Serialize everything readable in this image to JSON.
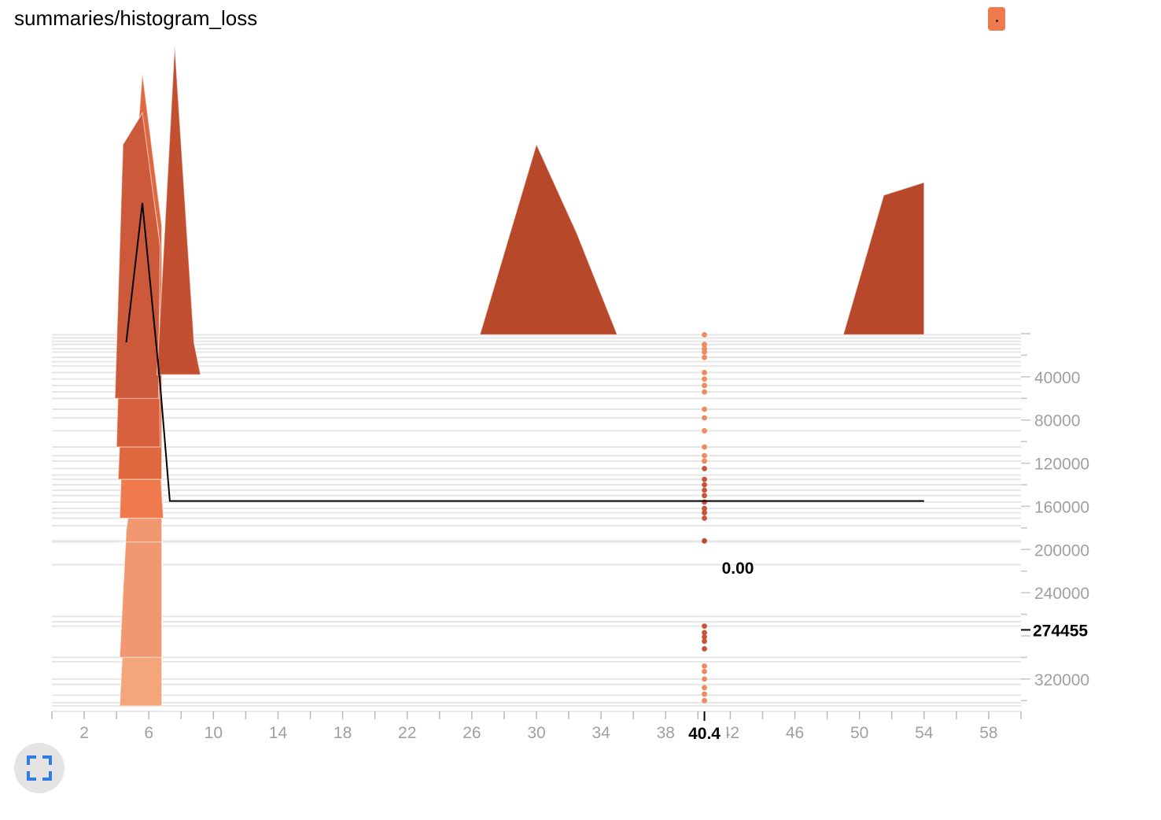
{
  "card": {
    "title": "summaries/histogram_loss",
    "series_color": "#ef7a4e"
  },
  "hover": {
    "x_value_label": "40.4",
    "bin_value_label": "0.00",
    "step_label": "274455"
  },
  "chart_data": {
    "type": "histogram-offset",
    "title": "summaries/histogram_loss",
    "x": {
      "range": [
        0,
        60
      ],
      "ticks": [
        2,
        6,
        10,
        14,
        18,
        22,
        26,
        30,
        34,
        38,
        42,
        46,
        50,
        54,
        58
      ]
    },
    "y_steps": {
      "range": [
        0,
        350000
      ],
      "ticks": [
        40000,
        80000,
        120000,
        160000,
        200000,
        240000,
        320000
      ]
    },
    "hover_x": 40.4,
    "hover_step": 274455,
    "hover_value": 0.0,
    "hover_bin_line": [
      [
        4.6,
        187500
      ],
      [
        5.6,
        125000
      ],
      [
        7.3,
        0
      ],
      [
        54,
        0
      ]
    ],
    "baseline_steps": [
      1000,
      4000,
      7000,
      10000,
      14000,
      17000,
      22000,
      26000,
      30000,
      36000,
      42000,
      48000,
      54000,
      60000,
      70000,
      78000,
      90000,
      105000,
      113000,
      118000,
      125000,
      131000,
      135000,
      140000,
      145000,
      150000,
      156000,
      162000,
      166000,
      171000,
      178000,
      192000,
      193000,
      214000,
      262000,
      267000,
      271000,
      300000,
      304000,
      320000,
      325000,
      335000,
      342000,
      345000
    ],
    "marker_steps": [
      1000,
      10000,
      14000,
      17000,
      22000,
      36000,
      42000,
      48000,
      54000,
      70000,
      78000,
      90000,
      105000,
      113000,
      118000,
      125000,
      135000,
      140000,
      145000,
      150000,
      156000,
      162000,
      166000,
      171000,
      192000,
      271000,
      277000,
      281000,
      285000,
      292000,
      308000,
      313000,
      320000,
      328000,
      334000,
      340000
    ],
    "histograms": [
      {
        "step": 1000,
        "color": "#b8482a",
        "points": [
          [
            26.5,
            0
          ],
          [
            30.0,
            150000
          ],
          [
            32.5,
            80000
          ],
          [
            35.0,
            0
          ]
        ]
      },
      {
        "step": 1000,
        "color": "#b8482a",
        "points": [
          [
            49.0,
            0
          ],
          [
            51.5,
            110000
          ],
          [
            54.0,
            120000
          ],
          [
            54.0,
            0
          ]
        ]
      },
      {
        "step": 38000,
        "color": "#c25030",
        "points": [
          [
            6.5,
            0
          ],
          [
            7.6,
            260000
          ],
          [
            8.8,
            25000
          ],
          [
            9.2,
            0
          ]
        ]
      },
      {
        "step": 60000,
        "color": "#cc5a3a",
        "points": [
          [
            3.9,
            0
          ],
          [
            4.4,
            200000
          ],
          [
            5.6,
            225000
          ],
          [
            6.7,
            120000
          ],
          [
            6.6,
            0
          ]
        ]
      },
      {
        "step": 105000,
        "color": "#d9603e",
        "points": [
          [
            4.0,
            0
          ],
          [
            4.5,
            220000
          ],
          [
            5.6,
            250000
          ],
          [
            6.6,
            170000
          ],
          [
            6.7,
            0
          ]
        ]
      },
      {
        "step": 135000,
        "color": "#e0683f",
        "points": [
          [
            4.1,
            0
          ],
          [
            4.6,
            150000
          ],
          [
            5.6,
            320000
          ],
          [
            6.8,
            200000
          ],
          [
            6.8,
            0
          ]
        ]
      },
      {
        "step": 171000,
        "color": "#ef7a4e",
        "points": [
          [
            4.2,
            0
          ],
          [
            4.6,
            150000
          ],
          [
            5.6,
            240000
          ],
          [
            6.6,
            60000
          ],
          [
            6.9,
            0
          ]
        ]
      },
      {
        "step": 193000,
        "color": "#f08a5e",
        "points": [
          [
            4.2,
            0
          ],
          [
            6.0,
            0
          ],
          [
            6.8,
            0
          ]
        ]
      },
      {
        "step": 300000,
        "color": "#f29870",
        "points": [
          [
            4.2,
            0
          ],
          [
            4.6,
            100000
          ],
          [
            5.6,
            190000
          ],
          [
            6.8,
            150000
          ],
          [
            6.8,
            0
          ]
        ]
      },
      {
        "step": 345000,
        "color": "#f4a57a",
        "points": [
          [
            4.2,
            0
          ],
          [
            4.6,
            100000
          ],
          [
            5.6,
            250000
          ],
          [
            6.8,
            160000
          ],
          [
            6.8,
            0
          ]
        ]
      }
    ]
  }
}
